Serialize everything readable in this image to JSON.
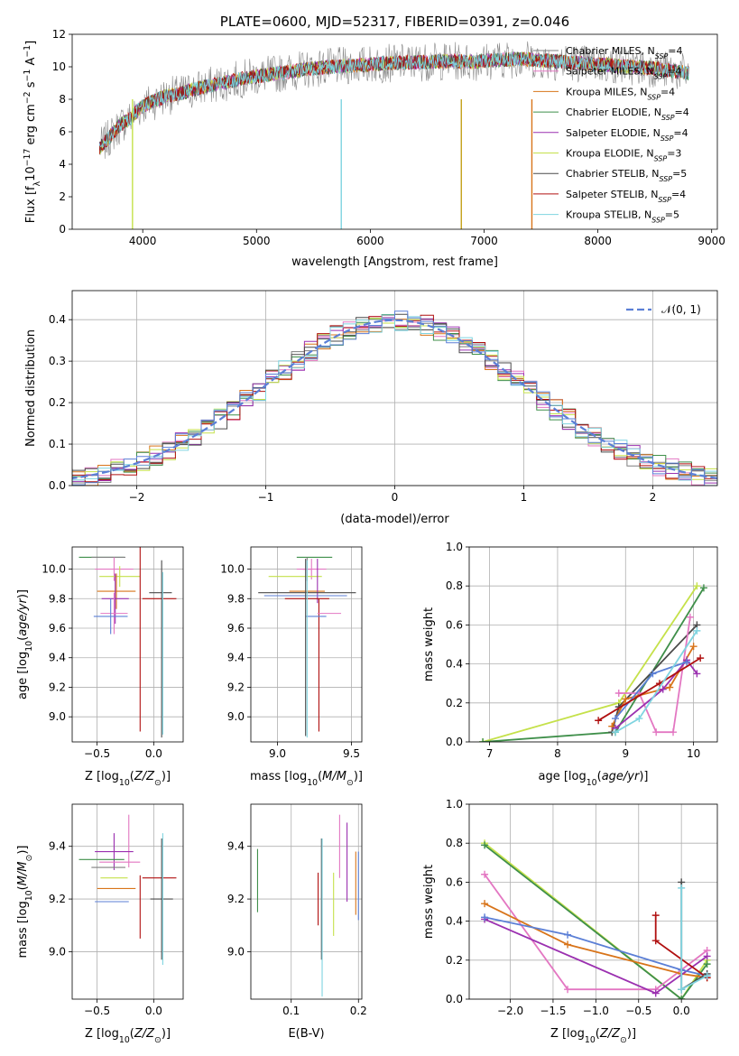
{
  "chart_data": [
    {
      "id": "spectrum",
      "type": "line",
      "title": "PLATE=0600, MJD=52317, FIBERID=0391, z=0.046",
      "xlabel": "wavelength [Angstrom, rest frame]",
      "ylabel": "Flux [f_λ 10^-17 erg cm^-2 s^-1 A^-1]",
      "xlim": [
        3380,
        9050
      ],
      "ylim": [
        0,
        12
      ],
      "xticks": [
        4000,
        5000,
        6000,
        7000,
        8000,
        9000
      ],
      "yticks": [
        0,
        2,
        4,
        6,
        8,
        10,
        12
      ],
      "grid": false,
      "legend_position": "upper-right",
      "continuum": {
        "x": [
          3620,
          3700,
          3800,
          3900,
          4000,
          4100,
          4200,
          4300,
          4400,
          4500,
          4700,
          4900,
          5100,
          5300,
          5500,
          5700,
          5900,
          6100,
          6300,
          6500,
          6700,
          6900,
          7100,
          7300,
          7500,
          7700,
          7900,
          8100,
          8300,
          8500,
          8700,
          8800
        ],
        "y": [
          5.0,
          5.6,
          6.4,
          6.9,
          7.6,
          7.9,
          8.2,
          8.3,
          8.5,
          8.7,
          9.0,
          9.3,
          9.5,
          9.7,
          9.9,
          10.0,
          10.1,
          10.2,
          10.25,
          10.3,
          10.35,
          10.3,
          10.4,
          10.5,
          10.4,
          10.3,
          10.2,
          10.1,
          10.0,
          9.9,
          9.7,
          9.6
        ]
      },
      "series": [
        {
          "name": "Chabrier MILES, N_SSP=4",
          "color": "#7f7f7f"
        },
        {
          "name": "Salpeter MILES, N_SSP=4",
          "color": "#e377c2"
        },
        {
          "name": "Kroupa MILES, N_SSP=4",
          "color": "#d8741a"
        },
        {
          "name": "Chabrier ELODIE, N_SSP=4",
          "color": "#3f8f4a"
        },
        {
          "name": "Salpeter ELODIE, N_SSP=4",
          "color": "#9b30b0"
        },
        {
          "name": "Kroupa ELODIE, N_SSP=3",
          "color": "#c5e14a"
        },
        {
          "name": "Chabrier STELIB, N_SSP=5",
          "color": "#4a4a4a"
        },
        {
          "name": "Salpeter STELIB, N_SSP=4",
          "color": "#b01010"
        },
        {
          "name": "Kroupa STELIB, N_SSP=5",
          "color": "#7fd4e0"
        }
      ]
    },
    {
      "id": "residuals",
      "type": "histogram",
      "xlabel": "(data-model)/error",
      "ylabel": "Normed distribution",
      "xlim": [
        -2.5,
        2.5
      ],
      "ylim": [
        0,
        0.47
      ],
      "xticks": [
        -2,
        -1,
        0,
        1,
        2
      ],
      "yticks": [
        0.0,
        0.1,
        0.2,
        0.3,
        0.4
      ],
      "grid": true,
      "legend_position": "upper-right",
      "reference_curve": {
        "name": "𝒩(0, 1)",
        "color": "#5b7fd6"
      },
      "bin_width": 0.1,
      "colors": [
        "#7f7f7f",
        "#e377c2",
        "#d8741a",
        "#3f8f4a",
        "#9b30b0",
        "#c5e14a",
        "#4a4a4a",
        "#b01010",
        "#7fd4e0",
        "#5b7fd6"
      ]
    },
    {
      "id": "age-vs-Z",
      "type": "errorbar",
      "xlabel": "Z [log10(Z/Z⊙)]",
      "ylabel": "age  [log10(age/yr)]",
      "xlim": [
        -0.72,
        0.26
      ],
      "ylim": [
        8.83,
        10.15
      ],
      "xticks": [
        -0.5,
        0.0
      ],
      "xticklabels": [
        "−0.5",
        "0.0"
      ],
      "yticks": [
        9.0,
        9.2,
        9.4,
        9.6,
        9.8,
        10.0
      ],
      "grid": true,
      "points": [
        {
          "x": -0.46,
          "y": 10.08,
          "xerr": 0.2,
          "yerr": 0.0,
          "color": "#3f8f4a"
        },
        {
          "x": -0.4,
          "y": 10.08,
          "xerr": 0.15,
          "yerr": 0.0,
          "color": "#7f7f7f"
        },
        {
          "x": -0.35,
          "y": 10.0,
          "xerr": 0.17,
          "yerr": 0.08,
          "color": "#e377c2"
        },
        {
          "x": -0.3,
          "y": 9.95,
          "xerr": 0.18,
          "yerr": 0.07,
          "color": "#c5e14a"
        },
        {
          "x": -0.33,
          "y": 9.85,
          "xerr": 0.17,
          "yerr": 0.12,
          "color": "#d8741a"
        },
        {
          "x": -0.34,
          "y": 9.8,
          "xerr": 0.12,
          "yerr": 0.17,
          "color": "#9b30b0"
        },
        {
          "x": -0.35,
          "y": 9.7,
          "xerr": 0.12,
          "yerr": 0.14,
          "color": "#e377c2"
        },
        {
          "x": -0.38,
          "y": 9.68,
          "xerr": 0.15,
          "yerr": 0.12,
          "color": "#5b7fd6"
        },
        {
          "x": -0.12,
          "y": 9.8,
          "xerr": 0.0,
          "yerr": 0.9,
          "color": "#b01010"
        },
        {
          "x": 0.05,
          "y": 9.8,
          "xerr": 0.15,
          "yerr": 0.0,
          "color": "#b01010"
        },
        {
          "x": 0.06,
          "y": 9.84,
          "xerr": 0.1,
          "yerr": 0.0,
          "color": "#4a4a4a"
        },
        {
          "x": 0.07,
          "y": 9.46,
          "xerr": 0.0,
          "yerr": 0.6,
          "color": "#4a4a4a"
        },
        {
          "x": 0.08,
          "y": 9.43,
          "xerr": 0.0,
          "yerr": 0.55,
          "color": "#7fd4e0"
        }
      ]
    },
    {
      "id": "age-vs-mass",
      "type": "errorbar",
      "xlabel": "mass [log10(M/M⊙)]",
      "ylabel": "",
      "xlim": [
        8.82,
        9.57
      ],
      "ylim": [
        8.83,
        10.15
      ],
      "xticks": [
        9.0,
        9.5
      ],
      "yticks": [
        9.0,
        9.2,
        9.4,
        9.6,
        9.8,
        10.0
      ],
      "grid": true,
      "points": [
        {
          "x": 9.25,
          "y": 10.08,
          "xerr": 0.12,
          "yerr": 0.0,
          "color": "#3f8f4a"
        },
        {
          "x": 9.2,
          "y": 10.0,
          "xerr": 0.03,
          "yerr": 0.08,
          "color": "#7f7f7f"
        },
        {
          "x": 9.23,
          "y": 10.0,
          "xerr": 0.1,
          "yerr": 0.07,
          "color": "#e377c2"
        },
        {
          "x": 9.12,
          "y": 9.95,
          "xerr": 0.18,
          "yerr": 0.0,
          "color": "#c5e14a"
        },
        {
          "x": 9.2,
          "y": 9.85,
          "xerr": 0.12,
          "yerr": 0.0,
          "color": "#d8741a"
        },
        {
          "x": 9.27,
          "y": 9.92,
          "xerr": 0.0,
          "yerr": 0.15,
          "color": "#9b30b0"
        },
        {
          "x": 9.2,
          "y": 9.84,
          "xerr": 0.33,
          "yerr": 0.0,
          "color": "#4a4a4a"
        },
        {
          "x": 9.19,
          "y": 9.82,
          "xerr": 0.28,
          "yerr": 0.0,
          "color": "#5b7fd6"
        },
        {
          "x": 9.2,
          "y": 9.8,
          "xerr": 0.15,
          "yerr": 0.0,
          "color": "#b01010"
        },
        {
          "x": 9.28,
          "y": 9.35,
          "xerr": 0.0,
          "yerr": 0.45,
          "color": "#b01010"
        },
        {
          "x": 9.35,
          "y": 9.7,
          "xerr": 0.08,
          "yerr": 0.0,
          "color": "#e377c2"
        },
        {
          "x": 9.26,
          "y": 9.68,
          "xerr": 0.07,
          "yerr": 0.0,
          "color": "#5b7fd6"
        },
        {
          "x": 9.2,
          "y": 9.46,
          "xerr": 0.0,
          "yerr": 0.6,
          "color": "#7fd4e0"
        },
        {
          "x": 9.19,
          "y": 9.47,
          "xerr": 0.0,
          "yerr": 0.6,
          "color": "#4a4a4a"
        }
      ]
    },
    {
      "id": "massweight-vs-age",
      "type": "line",
      "xlabel": "age  [log10(age/yr)]",
      "ylabel": "mass weight",
      "xlim": [
        6.7,
        10.35
      ],
      "ylim": [
        0,
        1.0
      ],
      "xticks": [
        7,
        8,
        9,
        10
      ],
      "yticks": [
        0.0,
        0.2,
        0.4,
        0.6,
        0.8,
        1.0
      ],
      "grid": true,
      "series": [
        {
          "color": "#c5e14a",
          "x": [
            6.9,
            8.9,
            10.05
          ],
          "y": [
            0.0,
            0.2,
            0.8
          ]
        },
        {
          "color": "#3f8f4a",
          "x": [
            6.9,
            8.85,
            10.15
          ],
          "y": [
            0.0,
            0.05,
            0.79
          ]
        },
        {
          "color": "#4a4a4a",
          "x": [
            8.8,
            8.9,
            10.05
          ],
          "y": [
            0.05,
            0.18,
            0.6
          ]
        },
        {
          "color": "#e377c2",
          "x": [
            8.9,
            9.2,
            9.45,
            9.7,
            9.95
          ],
          "y": [
            0.25,
            0.25,
            0.05,
            0.05,
            0.64
          ]
        },
        {
          "color": "#d8741a",
          "x": [
            8.8,
            9.0,
            9.65,
            10.0
          ],
          "y": [
            0.08,
            0.22,
            0.28,
            0.49
          ]
        },
        {
          "color": "#9b30b0",
          "x": [
            8.85,
            9.55,
            9.9,
            10.05
          ],
          "y": [
            0.07,
            0.27,
            0.42,
            0.35
          ]
        },
        {
          "color": "#5b7fd6",
          "x": [
            8.85,
            9.4,
            9.9
          ],
          "y": [
            0.12,
            0.35,
            0.41
          ]
        },
        {
          "color": "#b01010",
          "x": [
            8.6,
            9.5,
            10.1
          ],
          "y": [
            0.11,
            0.3,
            0.43
          ]
        },
        {
          "color": "#7fd4e0",
          "x": [
            8.85,
            9.2,
            10.05
          ],
          "y": [
            0.05,
            0.12,
            0.57
          ]
        }
      ]
    },
    {
      "id": "mass-vs-Z",
      "type": "errorbar",
      "xlabel": "Z [log10(Z/Z⊙)]",
      "ylabel": "mass [log10(M/M⊙)]",
      "xlim": [
        -0.72,
        0.26
      ],
      "ylim": [
        8.82,
        9.56
      ],
      "xticks": [
        -0.5,
        0.0
      ],
      "xticklabels": [
        "−0.5",
        "0.0"
      ],
      "yticks": [
        9.0,
        9.2,
        9.4
      ],
      "grid": true,
      "points": [
        {
          "x": -0.22,
          "y": 9.42,
          "xerr": 0.0,
          "yerr": 0.1,
          "color": "#e377c2"
        },
        {
          "x": -0.35,
          "y": 9.38,
          "xerr": 0.17,
          "yerr": 0.07,
          "color": "#9b30b0"
        },
        {
          "x": -0.46,
          "y": 9.35,
          "xerr": 0.2,
          "yerr": 0.0,
          "color": "#3f8f4a"
        },
        {
          "x": -0.3,
          "y": 9.34,
          "xerr": 0.18,
          "yerr": 0.0,
          "color": "#e377c2"
        },
        {
          "x": -0.4,
          "y": 9.32,
          "xerr": 0.15,
          "yerr": 0.0,
          "color": "#7f7f7f"
        },
        {
          "x": -0.35,
          "y": 9.28,
          "xerr": 0.12,
          "yerr": 0.0,
          "color": "#c5e14a"
        },
        {
          "x": -0.33,
          "y": 9.24,
          "xerr": 0.17,
          "yerr": 0.0,
          "color": "#d8741a"
        },
        {
          "x": -0.37,
          "y": 9.19,
          "xerr": 0.15,
          "yerr": 0.0,
          "color": "#5b7fd6"
        },
        {
          "x": -0.12,
          "y": 9.17,
          "xerr": 0.0,
          "yerr": 0.12,
          "color": "#b01010"
        },
        {
          "x": 0.05,
          "y": 9.28,
          "xerr": 0.15,
          "yerr": 0.0,
          "color": "#b01010"
        },
        {
          "x": 0.07,
          "y": 9.2,
          "xerr": 0.1,
          "yerr": 0.0,
          "color": "#4a4a4a"
        },
        {
          "x": 0.07,
          "y": 9.2,
          "xerr": 0.0,
          "yerr": 0.23,
          "color": "#4a4a4a"
        },
        {
          "x": 0.08,
          "y": 9.2,
          "xerr": 0.0,
          "yerr": 0.25,
          "color": "#7fd4e0"
        }
      ]
    },
    {
      "id": "mass-vs-ebv",
      "type": "errorbar",
      "xlabel": "E(B-V)",
      "ylabel": "",
      "xlim": [
        0.04,
        0.205
      ],
      "ylim": [
        8.82,
        9.56
      ],
      "xticks": [
        0.1,
        0.2
      ],
      "yticks": [
        9.0,
        9.2,
        9.4
      ],
      "grid": true,
      "points": [
        {
          "x": 0.05,
          "y": 9.27,
          "xerr": 0.0,
          "yerr": 0.12,
          "color": "#3f8f4a"
        },
        {
          "x": 0.14,
          "y": 9.2,
          "xerr": 0.0,
          "yerr": 0.1,
          "color": "#b01010"
        },
        {
          "x": 0.145,
          "y": 9.2,
          "xerr": 0.0,
          "yerr": 0.23,
          "color": "#4a4a4a"
        },
        {
          "x": 0.146,
          "y": 9.13,
          "xerr": 0.0,
          "yerr": 0.3,
          "color": "#7fd4e0"
        },
        {
          "x": 0.163,
          "y": 9.18,
          "xerr": 0.0,
          "yerr": 0.12,
          "color": "#c5e14a"
        },
        {
          "x": 0.172,
          "y": 9.4,
          "xerr": 0.0,
          "yerr": 0.12,
          "color": "#e377c2"
        },
        {
          "x": 0.183,
          "y": 9.34,
          "xerr": 0.0,
          "yerr": 0.15,
          "color": "#9b30b0"
        },
        {
          "x": 0.196,
          "y": 9.26,
          "xerr": 0.0,
          "yerr": 0.12,
          "color": "#d8741a"
        },
        {
          "x": 0.2,
          "y": 9.25,
          "xerr": 0.0,
          "yerr": 0.13,
          "color": "#5b7fd6"
        }
      ]
    },
    {
      "id": "massweight-vs-Z",
      "type": "line",
      "xlabel": "Z [log10(Z/Z⊙)]",
      "ylabel": "mass weight",
      "xlim": [
        -2.48,
        0.42
      ],
      "ylim": [
        0,
        1.0
      ],
      "xticks": [
        -2.0,
        -1.5,
        -1.0,
        -0.5,
        0.0
      ],
      "xticklabels": [
        "−2.0",
        "−1.5",
        "−1.0",
        "−0.5",
        "0.0"
      ],
      "yticks": [
        0.0,
        0.2,
        0.4,
        0.6,
        0.8,
        1.0
      ],
      "grid": true,
      "series": [
        {
          "color": "#c5e14a",
          "x": [
            -2.3,
            0.0,
            0.3
          ],
          "y": [
            0.8,
            0.0,
            0.2
          ]
        },
        {
          "color": "#3f8f4a",
          "x": [
            -2.3,
            0.0,
            0.3
          ],
          "y": [
            0.79,
            0.0,
            0.18
          ]
        },
        {
          "color": "#e377c2",
          "x": [
            -2.3,
            -1.33,
            -0.3,
            0.3
          ],
          "y": [
            0.64,
            0.05,
            0.05,
            0.25
          ]
        },
        {
          "color": "#d8741a",
          "x": [
            -2.3,
            -1.33,
            0.0,
            0.3
          ],
          "y": [
            0.49,
            0.28,
            0.13,
            0.11
          ]
        },
        {
          "color": "#9b30b0",
          "x": [
            -2.3,
            -0.3,
            0.3
          ],
          "y": [
            0.41,
            0.03,
            0.22
          ]
        },
        {
          "color": "#5b7fd6",
          "x": [
            -2.3,
            -1.33,
            0.0,
            0.3
          ],
          "y": [
            0.42,
            0.33,
            0.15,
            0.12
          ]
        },
        {
          "color": "#4a4a4a",
          "x": [
            0.0,
            0.0,
            0.3
          ],
          "y": [
            0.6,
            0.05,
            0.13
          ]
        },
        {
          "color": "#b01010",
          "x": [
            -0.3,
            -0.3,
            0.3
          ],
          "y": [
            0.43,
            0.3,
            0.11
          ]
        },
        {
          "color": "#7fd4e0",
          "x": [
            0.0,
            0.0,
            0.3
          ],
          "y": [
            0.57,
            0.05,
            0.12
          ]
        }
      ]
    }
  ]
}
